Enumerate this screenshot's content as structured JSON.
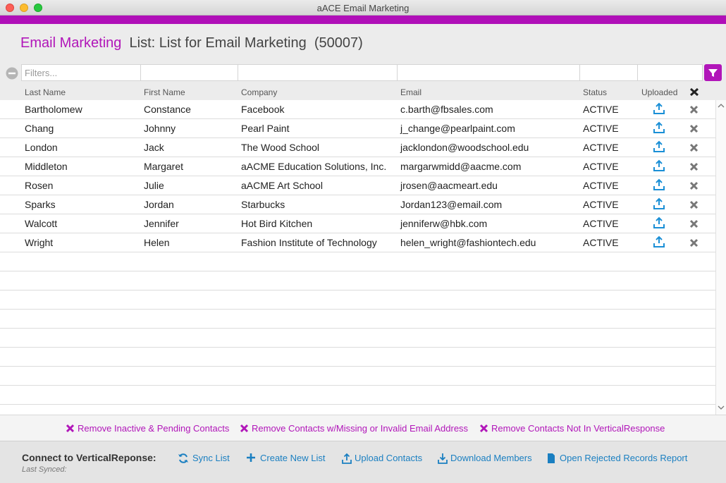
{
  "window": {
    "title": "aACE Email Marketing"
  },
  "header": {
    "module": "Email Marketing",
    "title": "List: List for Email Marketing  (50007)"
  },
  "filter": {
    "placeholder": "Filters..."
  },
  "table": {
    "columns": [
      "Last Name",
      "First Name",
      "Company",
      "Email",
      "Status",
      "Uploaded"
    ],
    "rows": [
      [
        "Bartholomew",
        "Constance",
        "Facebook",
        "c.barth@fbsales.com",
        "ACTIVE"
      ],
      [
        "Chang",
        "Johnny",
        "Pearl Paint",
        "j_change@pearlpaint.com",
        "ACTIVE"
      ],
      [
        "London",
        "Jack",
        "The Wood School",
        "jacklondon@woodschool.edu",
        "ACTIVE"
      ],
      [
        "Middleton",
        "Margaret",
        "aACME Education Solutions, Inc.",
        "margarwmidd@aacme.com",
        "ACTIVE"
      ],
      [
        "Rosen",
        "Julie",
        "aACME Art School",
        "jrosen@aacmeart.edu",
        "ACTIVE"
      ],
      [
        "Sparks",
        "Jordan",
        "Starbucks",
        "Jordan123@email.com",
        "ACTIVE"
      ],
      [
        "Walcott",
        "Jennifer",
        "Hot Bird Kitchen",
        "jenniferw@hbk.com",
        "ACTIVE"
      ],
      [
        "Wright",
        "Helen",
        "Fashion Institute of Technology",
        "helen_wright@fashiontech.edu",
        "ACTIVE"
      ]
    ]
  },
  "actions": [
    "Remove Inactive & Pending Contacts",
    "Remove Contacts w/Missing or Invalid Email Address",
    "Remove Contacts Not In VerticalResponse"
  ],
  "footer": {
    "label": "Connect to VerticalReponse:",
    "status": "Last Synced:",
    "buttons": [
      "Sync List",
      "Create New List",
      "Upload Contacts",
      "Download Members",
      "Open Rejected Records Report"
    ]
  }
}
